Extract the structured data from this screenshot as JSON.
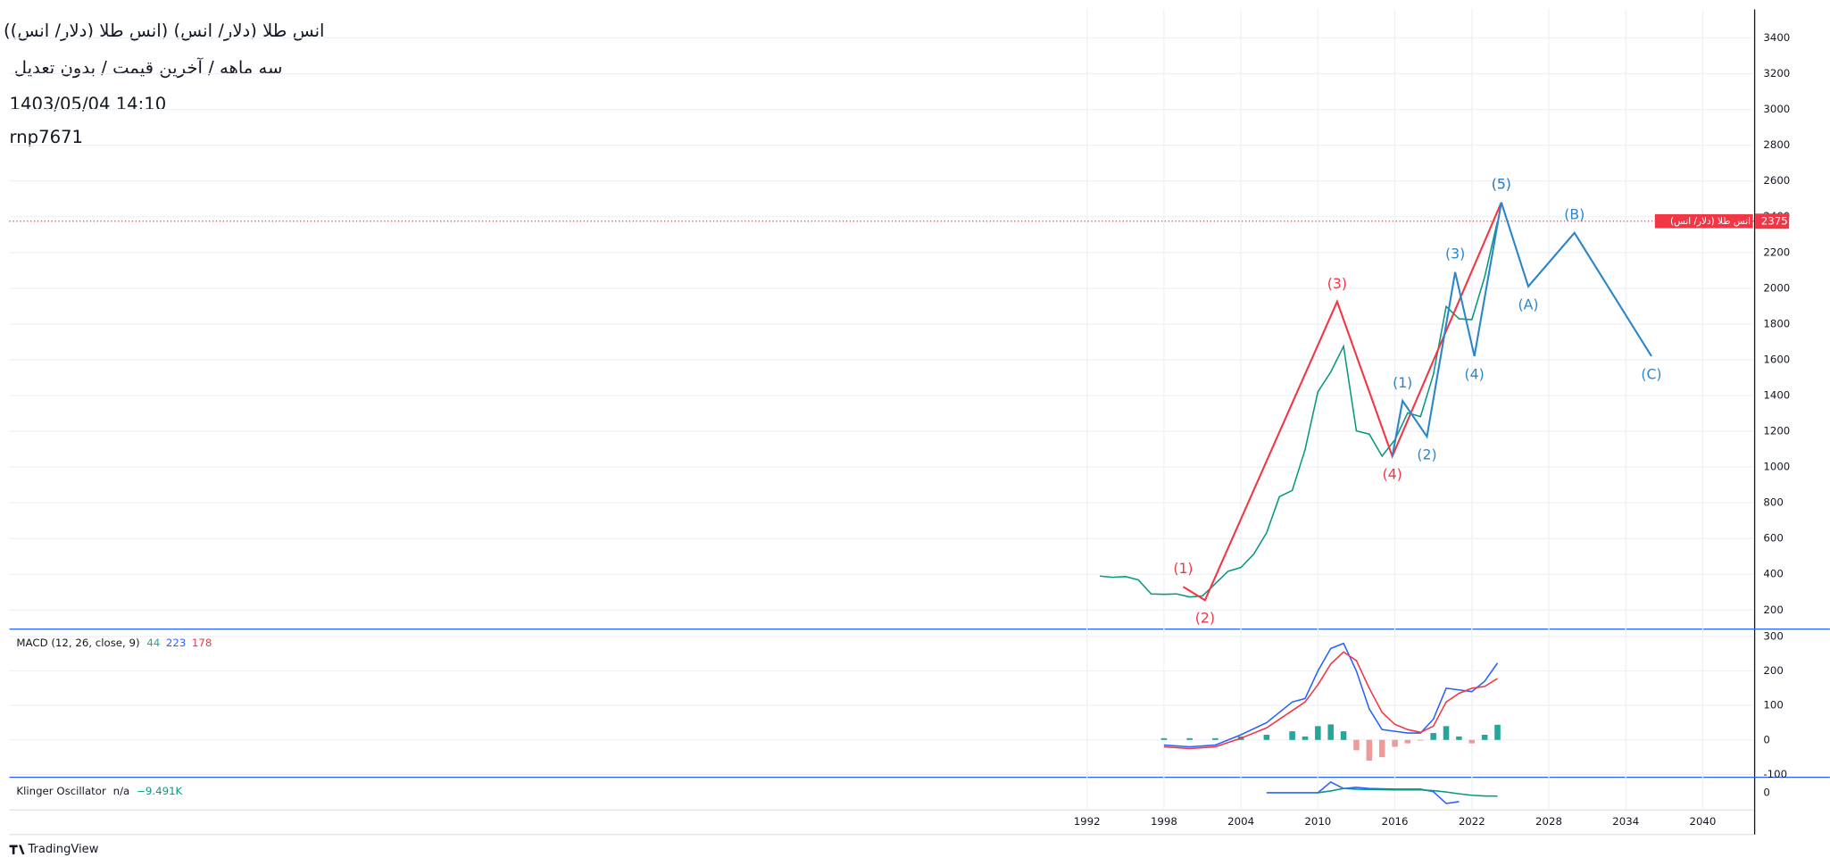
{
  "header": {
    "title": "انس طلا (دلار/ انس) (انس طلا (دلار/ انس))",
    "subtitle": "سه ماهه / آخرین قیمت / بدون تعدیل",
    "date": "1403/05/04 14:10",
    "author": "rnp7671"
  },
  "chart_data": [
    {
      "type": "line",
      "x": [
        1993,
        1994,
        1995,
        1996,
        1997,
        1998,
        1999,
        2000,
        2001,
        2002,
        2003,
        2004,
        2005,
        2006,
        2007,
        2008,
        2009,
        2010,
        2011,
        2012,
        2013,
        2014,
        2015,
        2016,
        2017,
        2018,
        2019,
        2020,
        2021,
        2022,
        2023,
        2024
      ],
      "series": [
        {
          "name": "انس طلا (دلار/ انس)",
          "color": "#089981",
          "values": [
            390,
            383,
            387,
            369,
            290,
            288,
            290,
            273,
            279,
            347,
            417,
            438,
            513,
            632,
            834,
            869,
            1097,
            1421,
            1531,
            1675,
            1202,
            1184,
            1061,
            1152,
            1303,
            1282,
            1517,
            1898,
            1829,
            1824,
            2063,
            2375
          ]
        }
      ],
      "price_line_color": "#f23645",
      "xlim": [
        1908,
        2044
      ],
      "xticks": [
        1992,
        1998,
        2004,
        2010,
        2016,
        2022,
        2028,
        2034,
        2040
      ],
      "ylim": [
        100,
        3560
      ],
      "yticks": [
        200,
        400,
        600,
        800,
        1000,
        1200,
        1400,
        1600,
        1800,
        2000,
        2200,
        2400,
        2600,
        2800,
        3000,
        3200,
        3400
      ],
      "grid": true,
      "waves": [
        {
          "color": "#f23645",
          "x": [
            1999.5,
            2001.2,
            2011.5,
            2015.8,
            2024.3
          ],
          "y": [
            330,
            255,
            1925,
            1060,
            2480
          ],
          "labels": [
            "(1)",
            "(2)",
            "(3)",
            "(4)",
            "(5)"
          ]
        },
        {
          "color": "#2a86c8",
          "x": [
            2015.8,
            2016.6,
            2018.5,
            2020.7,
            2022.2,
            2024.3,
            2026.4,
            2030,
            2036
          ],
          "y": [
            1060,
            1370,
            1170,
            2090,
            1620,
            2480,
            2010,
            2310,
            1620
          ],
          "labels": [
            null,
            "(1)",
            "(2)",
            "(3)",
            "(4)",
            "(5)",
            "(A)",
            "(B)",
            "(C)"
          ]
        }
      ]
    },
    {
      "type": "line",
      "title": "MACD (12, 26, close, 9)",
      "x": [
        1998,
        2000,
        2002,
        2004,
        2006,
        2008,
        2009,
        2010,
        2011,
        2012,
        2013,
        2014,
        2015,
        2016,
        2017,
        2018,
        2019,
        2020,
        2021,
        2022,
        2023,
        2024
      ],
      "series": [
        {
          "style": "histogram",
          "color": "#26a69a",
          "negative_color": "#ef9a9a",
          "values": [
            5,
            5,
            5,
            10,
            15,
            25,
            10,
            40,
            45,
            25,
            -30,
            -60,
            -50,
            -20,
            -10,
            -2,
            20,
            40,
            10,
            -10,
            15,
            44
          ]
        },
        {
          "style": "line",
          "color": "#2962ff",
          "values": [
            -15,
            -20,
            -15,
            15,
            50,
            110,
            120,
            200,
            265,
            280,
            200,
            90,
            30,
            25,
            20,
            20,
            60,
            150,
            145,
            140,
            170,
            223
          ]
        },
        {
          "style": "line",
          "color": "#f23645",
          "values": [
            -20,
            -25,
            -20,
            5,
            35,
            85,
            110,
            160,
            220,
            255,
            230,
            150,
            80,
            45,
            30,
            22,
            40,
            110,
            135,
            150,
            155,
            178
          ]
        }
      ],
      "ylim": [
        -105,
        318
      ],
      "yticks": [
        -100,
        0,
        100,
        200,
        300
      ],
      "grid": true
    },
    {
      "type": "line",
      "title": "Klinger Oscillator",
      "status": "n/a",
      "x": [
        2006,
        2008,
        2010,
        2011,
        2012,
        2013,
        2014,
        2016,
        2018,
        2019,
        2020,
        2021,
        2022,
        2023,
        2024
      ],
      "series": [
        {
          "color": "#2962ff",
          "values": [
            0,
            0,
            0,
            30000,
            12000,
            15000,
            12000,
            10000,
            10000,
            3000,
            -30000,
            -25000,
            null,
            null,
            null
          ]
        },
        {
          "color": "#089981",
          "values": [
            null,
            null,
            0,
            5000,
            12000,
            10000,
            9000,
            8000,
            8000,
            6000,
            2000,
            -3000,
            -7000,
            -9000,
            -9491
          ],
          "last_value_label": "−9.491K"
        }
      ],
      "ylim": [
        -45000,
        40000
      ],
      "yticks": [
        0
      ]
    }
  ],
  "footer": {
    "brand": "TradingView"
  }
}
